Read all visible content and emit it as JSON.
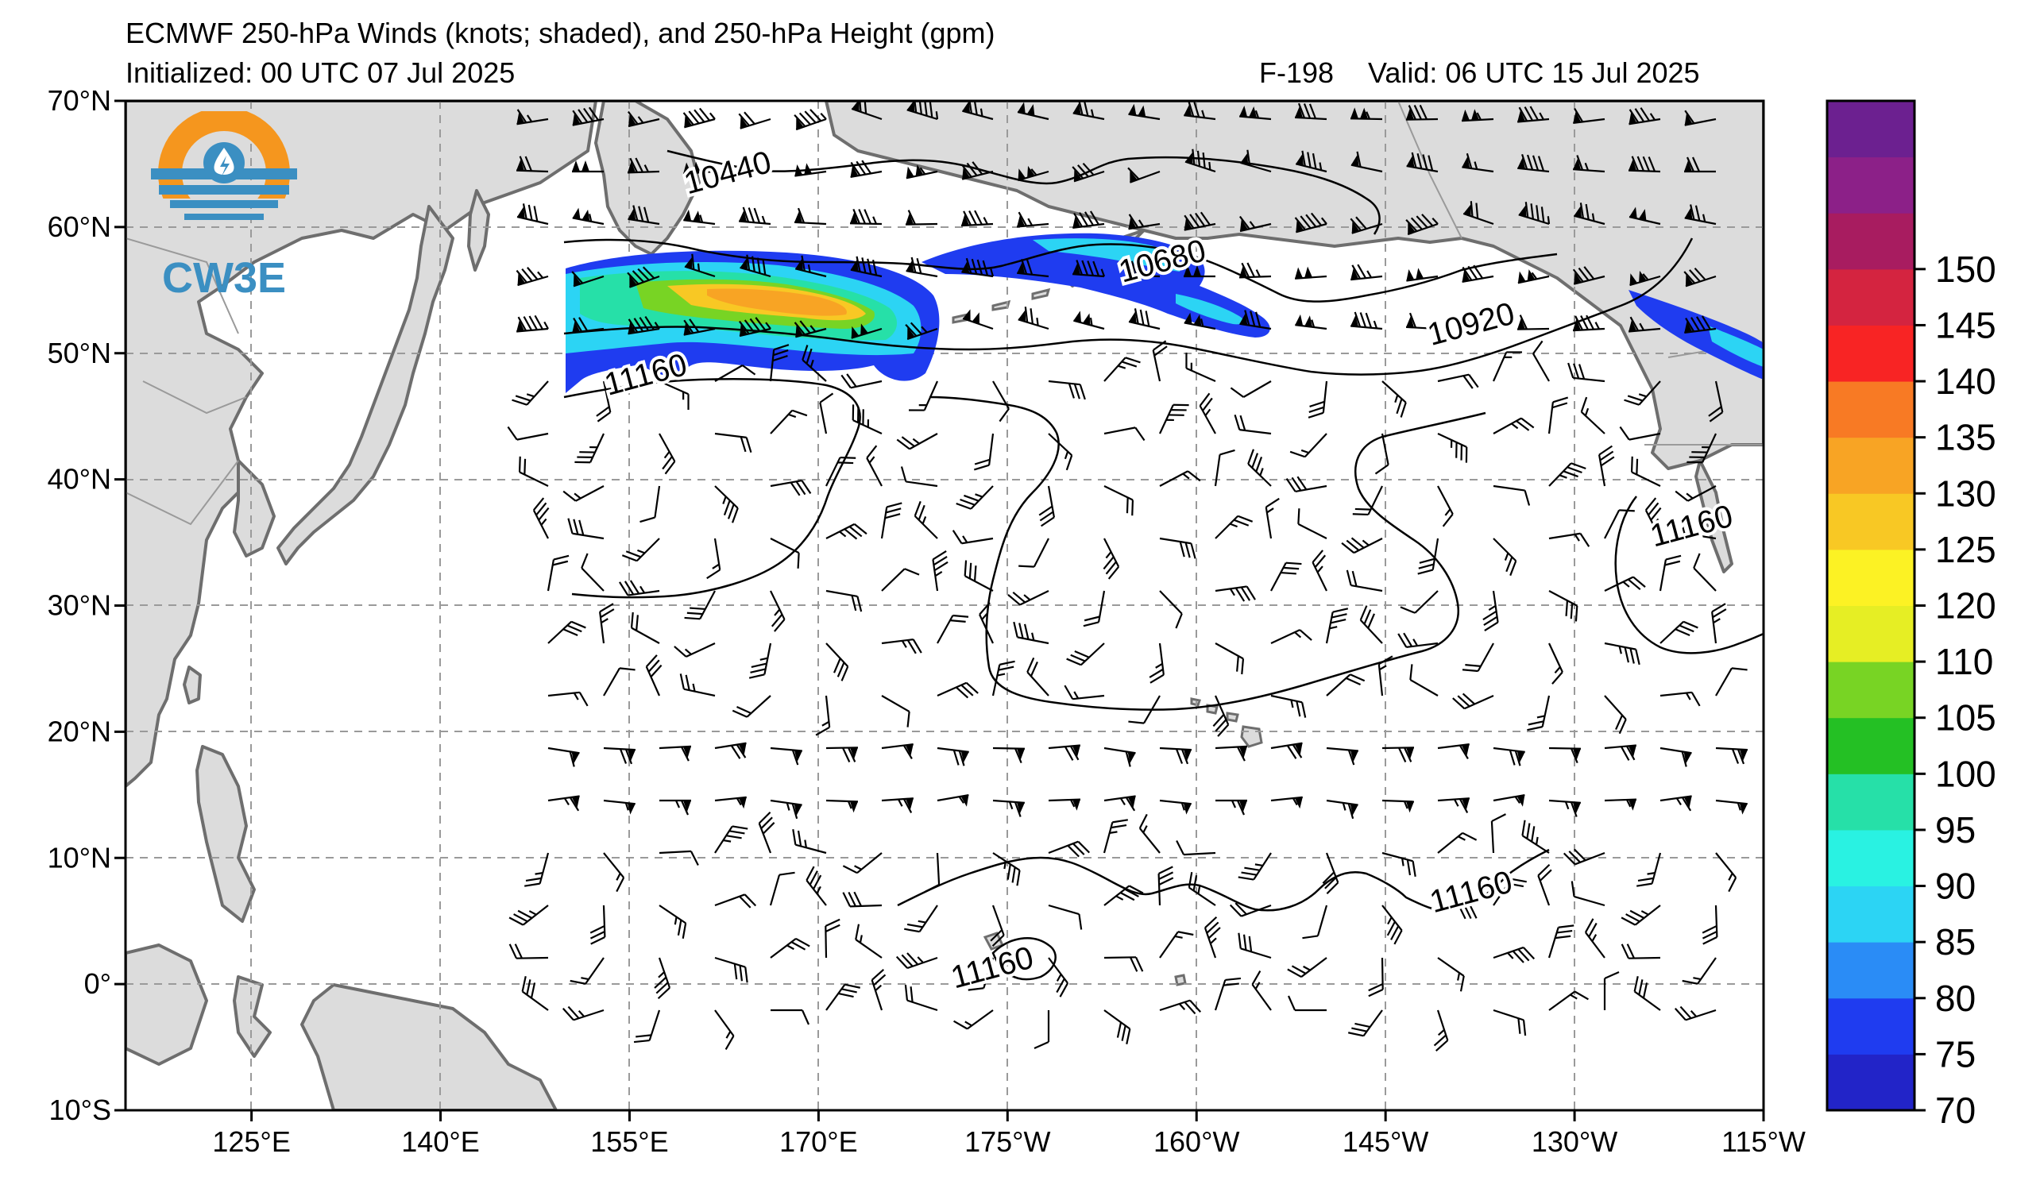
{
  "header": {
    "title": "ECMWF 250-hPa Winds (knots; shaded), and 250-hPa Height (gpm)",
    "initialized": "Initialized: 00 UTC 07 Jul 2025",
    "forecast_hour": "F-198",
    "valid": "Valid: 06 UTC 15 Jul 2025"
  },
  "logo": {
    "text": "CW3E",
    "icon": "cw3e-water-drop-logo"
  },
  "axes": {
    "lat_labels": [
      "70°N",
      "60°N",
      "50°N",
      "40°N",
      "30°N",
      "20°N",
      "10°N",
      "0°",
      "10°S"
    ],
    "lat_values": [
      70,
      60,
      50,
      40,
      30,
      20,
      10,
      0,
      -10
    ],
    "lon_labels": [
      "125°E",
      "140°E",
      "155°E",
      "170°E",
      "175°W",
      "160°W",
      "145°W",
      "130°W",
      "115°W"
    ],
    "lon_values": [
      125,
      140,
      155,
      170,
      185,
      200,
      215,
      230,
      245
    ],
    "lon_range": [
      115,
      245
    ],
    "lat_range": [
      -10,
      70
    ]
  },
  "colorbar": {
    "levels": [
      70,
      75,
      80,
      85,
      90,
      95,
      100,
      105,
      110,
      120,
      125,
      130,
      135,
      140,
      145,
      150,
      155
    ],
    "tick_labels": [
      "70",
      "75",
      "80",
      "85",
      "90",
      "95",
      "100",
      "105",
      "110",
      "120",
      "125",
      "130",
      "135",
      "140",
      "145",
      "150"
    ],
    "colors": [
      "#2224c8",
      "#1f3cf0",
      "#2a8cf6",
      "#2cd4f4",
      "#29f2e2",
      "#26e0a8",
      "#24c024",
      "#78d424",
      "#e6ee24",
      "#fcf224",
      "#f8c824",
      "#f8a424",
      "#f87a24",
      "#f82424",
      "#d42440",
      "#a81c60",
      "#8c2088",
      "#6c2090"
    ]
  },
  "height_contour_labels": [
    {
      "text": "10440",
      "lon": 163,
      "lat": 63.5
    },
    {
      "text": "10680",
      "lon": 197.5,
      "lat": 56.5
    },
    {
      "text": "10920",
      "lon": 222,
      "lat": 51.5
    },
    {
      "text": "11160",
      "lon": 156.5,
      "lat": 47.5
    },
    {
      "text": "11160",
      "lon": 239.5,
      "lat": 35.5
    },
    {
      "text": "11160",
      "lon": 222,
      "lat": 6.5
    },
    {
      "text": "11160",
      "lon": 184,
      "lat": 0.5
    }
  ],
  "colors": {
    "land": "#dcdcdc",
    "coast": "#6e6e6e",
    "grid": "#9a9a9a",
    "logo_orange": "#f5961e",
    "logo_blue": "#3b8fc2"
  }
}
